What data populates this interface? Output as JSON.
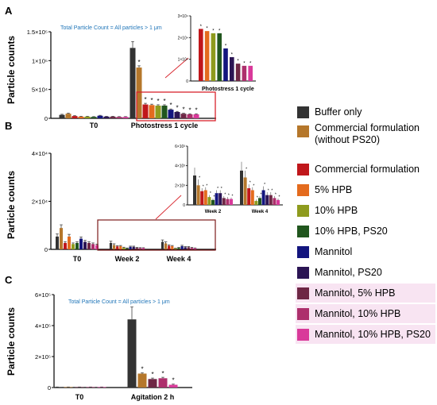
{
  "colors": {
    "buffer": "#333333",
    "commercial_no_ps20": "#b5772b",
    "commercial": "#c0171b",
    "hpb5": "#e46b1e",
    "hpb10": "#8e9b1e",
    "hpb10_ps20": "#21561e",
    "mannitol": "#13157e",
    "mannitol_ps20": "#2b1554",
    "mannitol_hpb5": "#6e2745",
    "mannitol_hpb10": "#ad2f6c",
    "mannitol_hpb10_ps20": "#d9399a",
    "highlight_box": "#d8242c",
    "highlight_box_b": "#7d1b1b",
    "annotation_text": "#1f75b8"
  },
  "legend": {
    "items": [
      {
        "label": "Buffer only",
        "color_key": "buffer"
      },
      {
        "label": "Commercial formulation (without PS20)",
        "color_key": "commercial_no_ps20"
      },
      {
        "label": "Commercial formulation",
        "color_key": "commercial"
      },
      {
        "label": "5% HPB",
        "color_key": "hpb5"
      },
      {
        "label": "10% HPB",
        "color_key": "hpb10"
      },
      {
        "label": "10% HPB, PS20",
        "color_key": "hpb10_ps20"
      },
      {
        "label": "Mannitol",
        "color_key": "mannitol"
      },
      {
        "label": "Mannitol, PS20",
        "color_key": "mannitol_ps20"
      },
      {
        "label": "Mannitol, 5% HPB",
        "color_key": "mannitol_hpb5"
      },
      {
        "label": "Mannitol, 10% HPB",
        "color_key": "mannitol_hpb10"
      },
      {
        "label": "Mannitol, 10% HPB, PS20",
        "color_key": "mannitol_hpb10_ps20"
      }
    ]
  },
  "chart_data": [
    {
      "panel": "A",
      "type": "bar",
      "annotation": "Total Particle Count = All particles > 1 μm",
      "ylabel": "Particle counts",
      "ylim": [
        0,
        150000
      ],
      "yticks": [
        "0",
        "5×10⁴",
        "1×10⁵",
        "1.5×10⁵"
      ],
      "categories": [
        "T0",
        "Photostress 1 cycle"
      ],
      "series_keys": [
        "buffer",
        "commercial_no_ps20",
        "commercial",
        "hpb5",
        "hpb10",
        "hpb10_ps20",
        "mannitol",
        "mannitol_ps20",
        "mannitol_hpb5",
        "mannitol_hpb10",
        "mannitol_hpb10_ps20"
      ],
      "values": [
        [
          6000,
          8000,
          4000,
          3000,
          3000,
          2500,
          4500,
          3000,
          3000,
          2500,
          2500
        ],
        [
          122000,
          88000,
          24000,
          23000,
          22000,
          22000,
          15000,
          11000,
          8000,
          7000,
          7000
        ]
      ],
      "errors": [
        [
          1000,
          1000,
          600,
          500,
          500,
          500,
          700,
          500,
          500,
          500,
          500
        ],
        [
          11000,
          3000,
          2000,
          1500,
          1500,
          1500,
          1200,
          1000,
          800,
          800,
          800
        ]
      ],
      "stars": [
        [],
        [
          1,
          2,
          3,
          4,
          5,
          6,
          7,
          8,
          9,
          10
        ]
      ],
      "highlight_category": 1,
      "inset": {
        "title": "Photostress 1 cycle",
        "yticks": [
          "0",
          "1×10⁴",
          "2×10⁴",
          "3×10⁴"
        ],
        "ylim": [
          0,
          30000
        ],
        "values": [
          24000,
          23000,
          22000,
          22000,
          15000,
          11000,
          8000,
          7000,
          7000
        ],
        "series_keys": [
          "commercial",
          "hpb5",
          "hpb10",
          "hpb10_ps20",
          "mannitol",
          "mannitol_ps20",
          "mannitol_hpb5",
          "mannitol_hpb10",
          "mannitol_hpb10_ps20"
        ]
      }
    },
    {
      "panel": "B",
      "type": "bar",
      "ylabel": "Particle counts",
      "ylim": [
        0,
        45000
      ],
      "yticks": [
        "0",
        "2×10⁴",
        "4×10⁴"
      ],
      "categories": [
        "T0",
        "Week 2",
        "Week 4"
      ],
      "series_keys": [
        "buffer",
        "commercial_no_ps20",
        "commercial",
        "hpb5",
        "hpb10",
        "hpb10_ps20",
        "mannitol",
        "mannitol_ps20",
        "mannitol_hpb5",
        "mannitol_hpb10",
        "mannitol_hpb10_ps20"
      ],
      "values": [
        [
          6000,
          10000,
          3000,
          6000,
          2500,
          3000,
          5000,
          3500,
          3000,
          2500,
          2000
        ],
        [
          3000,
          2000,
          1400,
          1500,
          800,
          500,
          1200,
          1200,
          700,
          600,
          600
        ],
        [
          3500,
          2800,
          1700,
          1500,
          400,
          700,
          1500,
          1000,
          1000,
          700,
          500
        ]
      ],
      "errors": [
        [
          1200,
          1500,
          600,
          1000,
          500,
          500,
          800,
          700,
          600,
          500,
          400
        ],
        [
          800,
          600,
          300,
          300,
          200,
          150,
          300,
          300,
          200,
          200,
          150
        ],
        [
          900,
          700,
          400,
          300,
          150,
          200,
          400,
          300,
          300,
          200,
          150
        ]
      ],
      "highlight_categories": [
        1,
        2
      ],
      "inset": {
        "categories": [
          "Week 2",
          "Week 4"
        ],
        "yticks": [
          "0",
          "2×10³",
          "4×10³",
          "6×10³"
        ],
        "ylim": [
          0,
          6000
        ],
        "values": [
          [
            3000,
            2000,
            1400,
            1500,
            800,
            500,
            1200,
            1200,
            700,
            600,
            600
          ],
          [
            3500,
            2800,
            1700,
            1500,
            400,
            700,
            1500,
            1000,
            1000,
            700,
            500
          ]
        ],
        "errors": [
          [
            800,
            600,
            300,
            300,
            200,
            150,
            300,
            300,
            200,
            200,
            150
          ],
          [
            900,
            700,
            400,
            300,
            150,
            200,
            400,
            300,
            300,
            200,
            150
          ]
        ]
      }
    },
    {
      "panel": "C",
      "type": "bar",
      "annotation": "Total Particle Count = All particles > 1 μm",
      "ylabel": "Particle counts",
      "ylim": [
        0,
        600000
      ],
      "yticks": [
        "0",
        "2×10⁵",
        "4×10⁵",
        "6×10⁵"
      ],
      "categories": [
        "T0",
        "Agitation 2 h"
      ],
      "series_keys": [
        "buffer",
        "commercial_no_ps20",
        "mannitol_hpb5",
        "mannitol_hpb10",
        "mannitol_hpb10_ps20"
      ],
      "values": [
        [
          3000,
          3000,
          3000,
          3000,
          3000
        ],
        [
          440000,
          90000,
          55000,
          60000,
          18000
        ]
      ],
      "errors": [
        [
          500,
          500,
          500,
          500,
          500
        ],
        [
          80000,
          5000,
          6000,
          6000,
          4000
        ]
      ],
      "stars": [
        [],
        [
          1,
          2,
          3,
          4
        ]
      ]
    }
  ]
}
